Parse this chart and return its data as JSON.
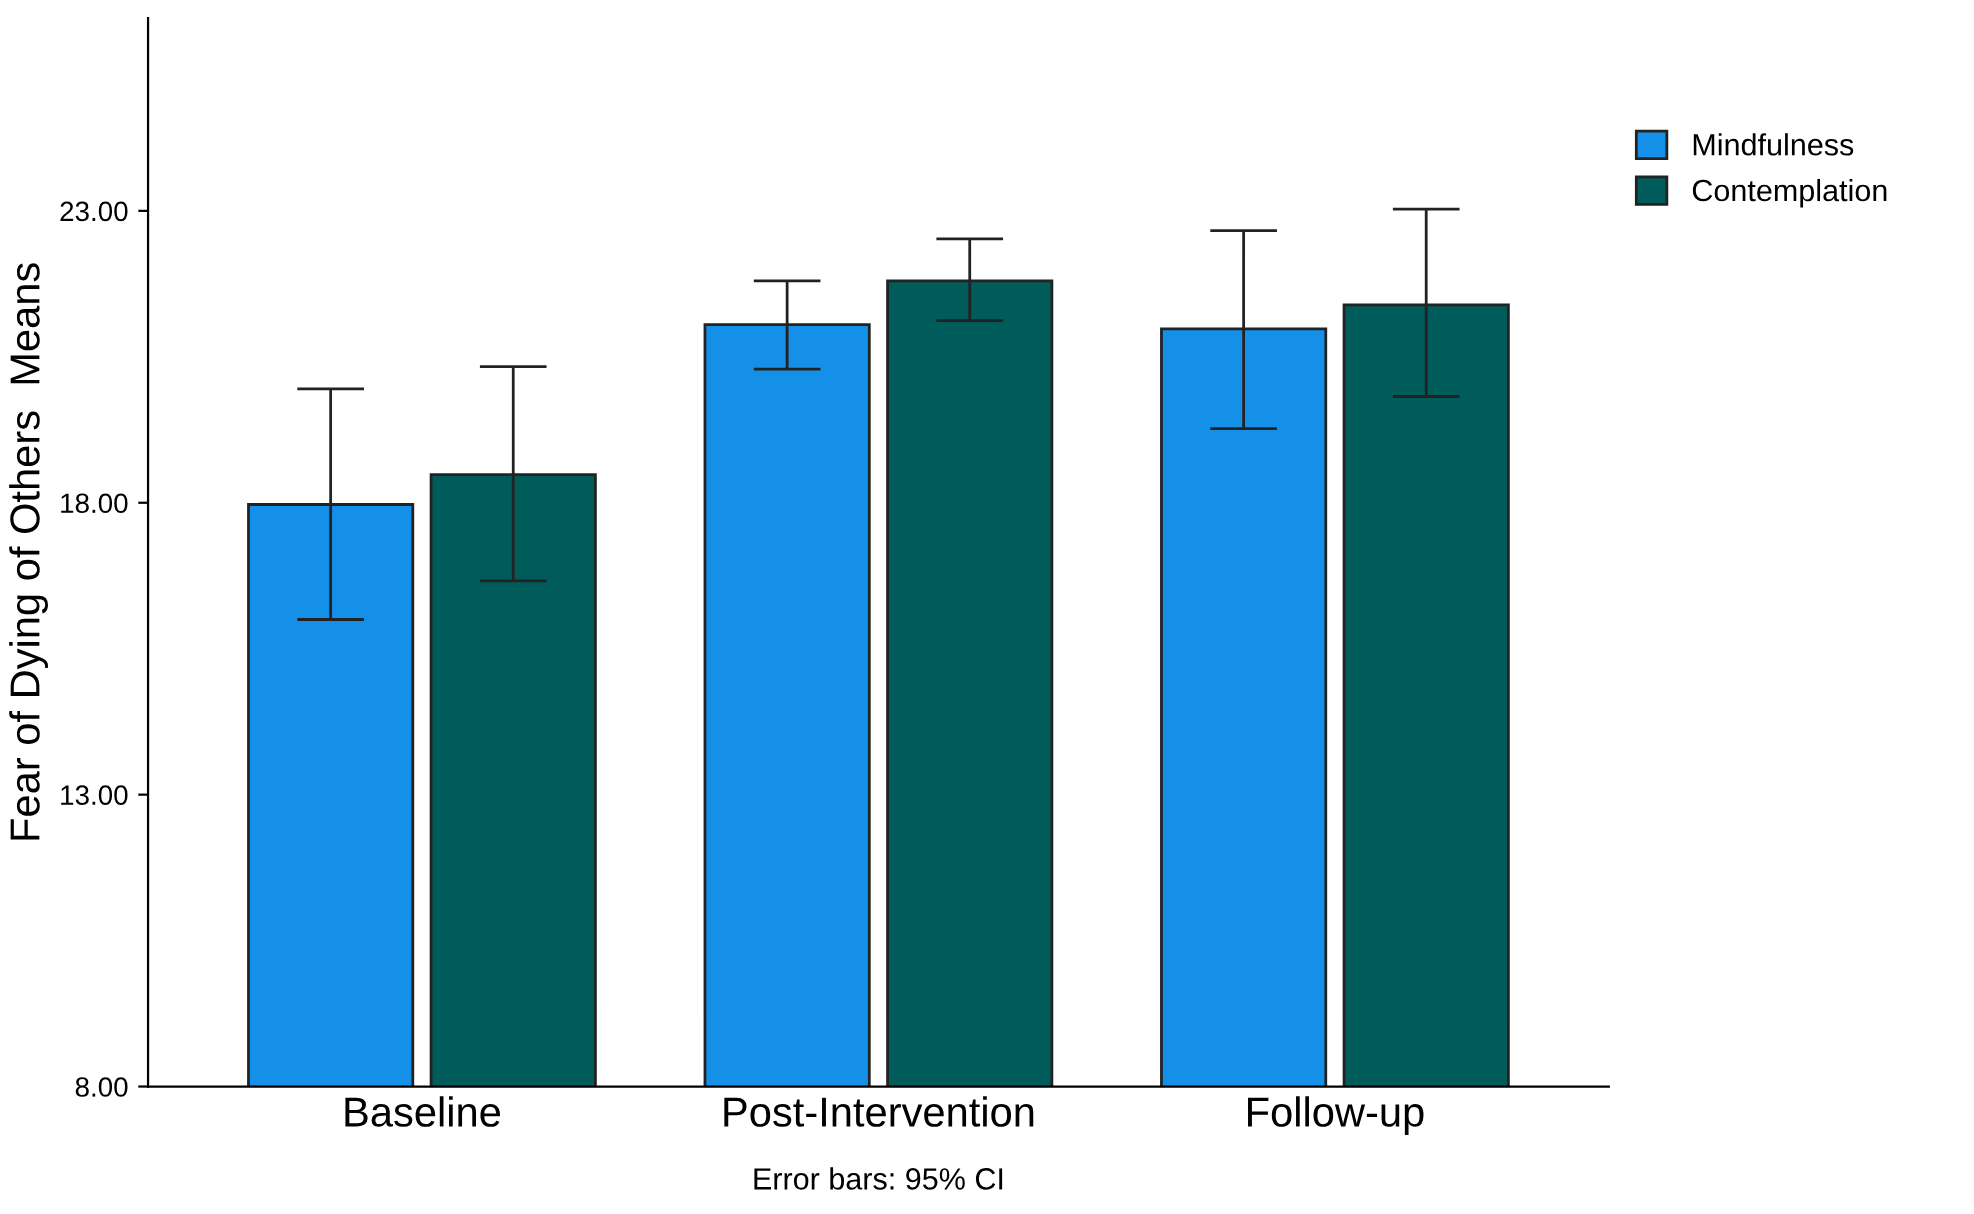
{
  "chart_data": {
    "type": "bar",
    "ylabel": "Fear of Dying of Others  Means",
    "categories": [
      "Baseline",
      "Post-Intervention",
      "Follow-up"
    ],
    "series": [
      {
        "name": "Mindfulness",
        "color": "#1590e8",
        "values": [
          17.97,
          21.05,
          20.98
        ],
        "errors": [
          [
            16.0,
            19.95
          ],
          [
            20.29,
            21.8
          ],
          [
            19.27,
            22.66
          ]
        ]
      },
      {
        "name": "Contemplation",
        "color": "#005b5b",
        "values": [
          18.48,
          21.8,
          21.39
        ],
        "errors": [
          [
            16.66,
            20.33
          ],
          [
            21.12,
            22.52
          ],
          [
            19.82,
            23.03
          ]
        ]
      }
    ],
    "ylim": [
      8,
      26.3
    ],
    "yticks": [
      {
        "value": 8,
        "label": "8.00"
      },
      {
        "value": 13,
        "label": "13.00"
      },
      {
        "value": 18,
        "label": "18.00"
      },
      {
        "value": 23,
        "label": "23.00"
      }
    ],
    "grid": false,
    "legend": "top right",
    "annotations": [
      "Error bars: 95% CI"
    ]
  }
}
